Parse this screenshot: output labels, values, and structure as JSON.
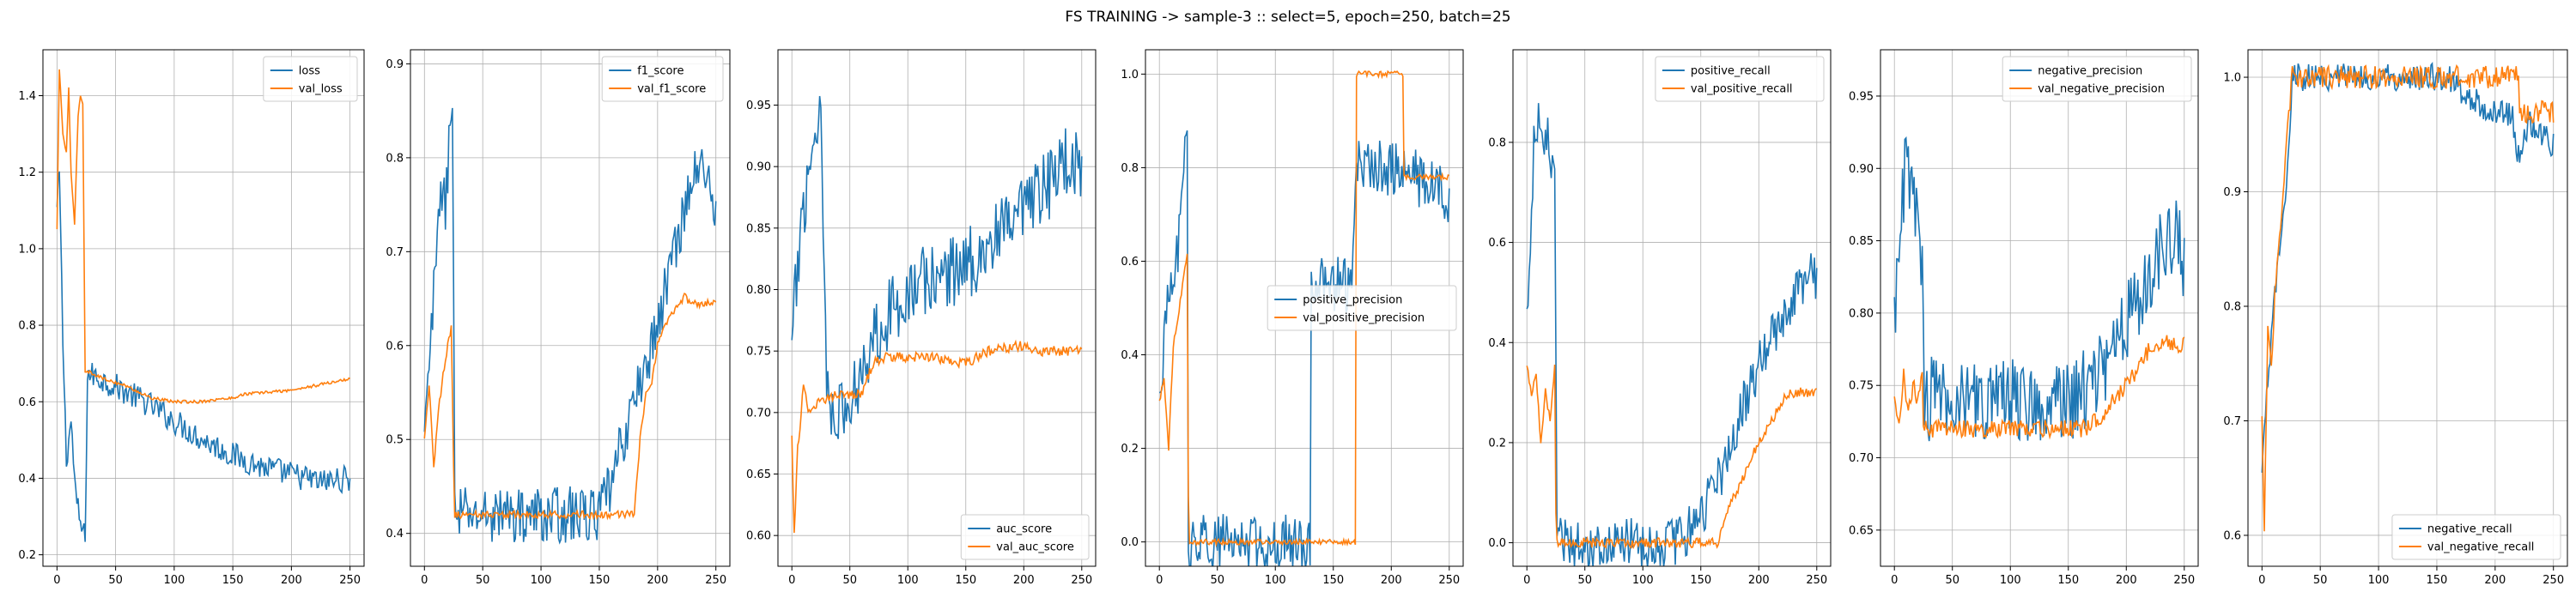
{
  "figure": {
    "suptitle": "FS TRAINING -> sample-3 :: select=5, epoch=250, batch=25"
  },
  "colors": {
    "series_blue": "#1f77b4",
    "series_orange": "#ff7f0e",
    "grid": "#b0b0b0"
  },
  "chart_data": [
    {
      "type": "line",
      "x_range": [
        0,
        250
      ],
      "xlim": [
        -12,
        262
      ],
      "ylim": [
        0.17,
        1.52
      ],
      "x_ticks": [
        0,
        50,
        100,
        150,
        200,
        250
      ],
      "y_ticks": [
        0.2,
        0.4,
        0.6,
        0.8,
        1.0,
        1.2,
        1.4
      ],
      "y_tick_labels": [
        "0.2",
        "0.4",
        "0.6",
        "0.8",
        "1.0",
        "1.2",
        "1.4"
      ],
      "grid": true,
      "legend_position": "top-right",
      "series": [
        {
          "name": "loss",
          "color": "#1f77b4",
          "noise": 0.035,
          "control_x": [
            0,
            2,
            5,
            8,
            12,
            16,
            20,
            24,
            26,
            30,
            50,
            75,
            100,
            125,
            150,
            175,
            200,
            225,
            250
          ],
          "control_y": [
            1.1,
            1.2,
            0.76,
            0.45,
            0.55,
            0.35,
            0.28,
            0.24,
            0.67,
            0.67,
            0.64,
            0.6,
            0.55,
            0.5,
            0.46,
            0.43,
            0.41,
            0.39,
            0.4
          ]
        },
        {
          "name": "val_loss",
          "color": "#ff7f0e",
          "noise": 0.004,
          "control_x": [
            0,
            2,
            5,
            8,
            10,
            12,
            15,
            18,
            20,
            22,
            24,
            26,
            40,
            60,
            80,
            100,
            120,
            150,
            160,
            200,
            250
          ],
          "control_y": [
            1.05,
            1.47,
            1.3,
            1.25,
            1.42,
            1.2,
            1.06,
            1.35,
            1.4,
            1.38,
            0.68,
            0.68,
            0.66,
            0.64,
            0.61,
            0.6,
            0.6,
            0.61,
            0.62,
            0.63,
            0.66
          ]
        }
      ]
    },
    {
      "type": "line",
      "x_range": [
        0,
        250
      ],
      "xlim": [
        -12,
        262
      ],
      "ylim": [
        0.365,
        0.915
      ],
      "x_ticks": [
        0,
        50,
        100,
        150,
        200,
        250
      ],
      "y_ticks": [
        0.4,
        0.5,
        0.6,
        0.7,
        0.8,
        0.9
      ],
      "y_tick_labels": [
        "0.4",
        "0.5",
        "0.6",
        "0.7",
        "0.8",
        "0.9"
      ],
      "grid": true,
      "legend_position": "top-right",
      "series": [
        {
          "name": "f1_score",
          "color": "#1f77b4",
          "noise": 0.03,
          "control_x": [
            0,
            3,
            6,
            10,
            14,
            18,
            22,
            24,
            26,
            30,
            60,
            100,
            150,
            160,
            175,
            190,
            200,
            210,
            220,
            230,
            240,
            250
          ],
          "control_y": [
            0.5,
            0.55,
            0.62,
            0.68,
            0.78,
            0.74,
            0.84,
            0.88,
            0.42,
            0.42,
            0.42,
            0.42,
            0.42,
            0.45,
            0.52,
            0.58,
            0.62,
            0.68,
            0.73,
            0.78,
            0.79,
            0.75
          ]
        },
        {
          "name": "val_f1_score",
          "color": "#ff7f0e",
          "noise": 0.004,
          "control_x": [
            0,
            4,
            8,
            12,
            16,
            20,
            23,
            25,
            26,
            40,
            100,
            160,
            170,
            180,
            185,
            190,
            195,
            200,
            210,
            225,
            226,
            250
          ],
          "control_y": [
            0.5,
            0.56,
            0.47,
            0.53,
            0.57,
            0.6,
            0.62,
            0.47,
            0.42,
            0.42,
            0.42,
            0.42,
            0.42,
            0.42,
            0.5,
            0.55,
            0.56,
            0.6,
            0.63,
            0.655,
            0.645,
            0.645
          ]
        }
      ]
    },
    {
      "type": "line",
      "x_range": [
        0,
        250
      ],
      "xlim": [
        -12,
        262
      ],
      "ylim": [
        0.575,
        0.995
      ],
      "x_ticks": [
        0,
        50,
        100,
        150,
        200,
        250
      ],
      "y_ticks": [
        0.6,
        0.65,
        0.7,
        0.75,
        0.8,
        0.85,
        0.9,
        0.95
      ],
      "y_tick_labels": [
        "0.60",
        "0.65",
        "0.70",
        "0.75",
        "0.80",
        "0.85",
        "0.90",
        "0.95"
      ],
      "grid": true,
      "legend_position": "bottom-right",
      "series": [
        {
          "name": "auc_score",
          "color": "#1f77b4",
          "noise": 0.03,
          "control_x": [
            0,
            5,
            10,
            15,
            20,
            25,
            30,
            40,
            50,
            60,
            75,
            100,
            125,
            150,
            175,
            200,
            225,
            240,
            250
          ],
          "control_y": [
            0.75,
            0.82,
            0.87,
            0.9,
            0.93,
            0.95,
            0.72,
            0.7,
            0.7,
            0.74,
            0.77,
            0.8,
            0.81,
            0.82,
            0.84,
            0.86,
            0.89,
            0.91,
            0.9
          ]
        },
        {
          "name": "val_auc_score",
          "color": "#ff7f0e",
          "noise": 0.004,
          "control_x": [
            0,
            2,
            5,
            10,
            15,
            25,
            40,
            60,
            70,
            80,
            100,
            120,
            150,
            160,
            170,
            200,
            210,
            250
          ],
          "control_y": [
            0.68,
            0.6,
            0.67,
            0.72,
            0.7,
            0.71,
            0.715,
            0.715,
            0.74,
            0.745,
            0.745,
            0.745,
            0.74,
            0.745,
            0.75,
            0.755,
            0.75,
            0.75
          ]
        }
      ]
    },
    {
      "type": "line",
      "x_range": [
        0,
        250
      ],
      "xlim": [
        -12,
        262
      ],
      "ylim": [
        -0.052,
        1.052
      ],
      "x_ticks": [
        0,
        50,
        100,
        150,
        200,
        250
      ],
      "y_ticks": [
        0.0,
        0.2,
        0.4,
        0.6,
        0.8,
        1.0
      ],
      "y_tick_labels": [
        "0.0",
        "0.2",
        "0.4",
        "0.6",
        "0.8",
        "1.0"
      ],
      "grid": true,
      "legend_position": "center-right",
      "series": [
        {
          "name": "positive_precision",
          "color": "#1f77b4",
          "noise": 0.06,
          "control_x": [
            0,
            5,
            10,
            15,
            20,
            24,
            25,
            26,
            130,
            131,
            165,
            170,
            180,
            200,
            220,
            240,
            250
          ],
          "control_y": [
            0.3,
            0.45,
            0.55,
            0.6,
            0.72,
            0.9,
            0.02,
            0.0,
            0.0,
            0.55,
            0.55,
            0.8,
            0.8,
            0.8,
            0.78,
            0.75,
            0.73
          ]
        },
        {
          "name": "val_positive_precision",
          "color": "#ff7f0e",
          "noise": 0.006,
          "control_x": [
            0,
            4,
            8,
            12,
            16,
            20,
            24,
            25,
            26,
            169,
            170,
            210,
            211,
            250
          ],
          "control_y": [
            0.3,
            0.35,
            0.2,
            0.42,
            0.48,
            0.55,
            0.62,
            0.1,
            0.0,
            0.0,
            1.0,
            1.0,
            0.78,
            0.78
          ]
        }
      ]
    },
    {
      "type": "line",
      "x_range": [
        0,
        250
      ],
      "xlim": [
        -12,
        262
      ],
      "ylim": [
        -0.047,
        0.985
      ],
      "x_ticks": [
        0,
        50,
        100,
        150,
        200,
        250
      ],
      "y_ticks": [
        0.0,
        0.2,
        0.4,
        0.6,
        0.8
      ],
      "y_tick_labels": [
        "0.0",
        "0.2",
        "0.4",
        "0.6",
        "0.8"
      ],
      "grid": true,
      "legend_position": "top-right",
      "series": [
        {
          "name": "positive_recall",
          "color": "#1f77b4",
          "noise": 0.05,
          "control_x": [
            0,
            3,
            6,
            10,
            14,
            18,
            22,
            24,
            26,
            130,
            150,
            170,
            190,
            210,
            230,
            245,
            250
          ],
          "control_y": [
            0.45,
            0.6,
            0.8,
            0.85,
            0.78,
            0.8,
            0.75,
            0.7,
            0.0,
            0.0,
            0.06,
            0.15,
            0.3,
            0.4,
            0.5,
            0.55,
            0.52
          ]
        },
        {
          "name": "val_positive_recall",
          "color": "#ff7f0e",
          "noise": 0.01,
          "control_x": [
            0,
            4,
            8,
            12,
            16,
            20,
            24,
            25,
            26,
            165,
            170,
            185,
            195,
            205,
            215,
            225,
            250
          ],
          "control_y": [
            0.35,
            0.3,
            0.33,
            0.2,
            0.3,
            0.25,
            0.35,
            0.05,
            0.0,
            0.0,
            0.05,
            0.12,
            0.18,
            0.22,
            0.26,
            0.3,
            0.3
          ]
        }
      ]
    },
    {
      "type": "line",
      "x_range": [
        0,
        250
      ],
      "xlim": [
        -12,
        262
      ],
      "ylim": [
        0.625,
        0.982
      ],
      "x_ticks": [
        0,
        50,
        100,
        150,
        200,
        250
      ],
      "y_ticks": [
        0.65,
        0.7,
        0.75,
        0.8,
        0.85,
        0.9,
        0.95
      ],
      "y_tick_labels": [
        "0.65",
        "0.70",
        "0.75",
        "0.80",
        "0.85",
        "0.90",
        "0.95"
      ],
      "grid": true,
      "legend_position": "top-right",
      "series": [
        {
          "name": "negative_precision",
          "color": "#1f77b4",
          "noise": 0.03,
          "control_x": [
            0,
            5,
            10,
            15,
            20,
            24,
            26,
            50,
            100,
            150,
            170,
            190,
            210,
            230,
            245,
            250
          ],
          "control_y": [
            0.8,
            0.87,
            0.9,
            0.88,
            0.86,
            0.84,
            0.74,
            0.74,
            0.74,
            0.74,
            0.75,
            0.78,
            0.81,
            0.84,
            0.85,
            0.83
          ]
        },
        {
          "name": "val_negative_precision",
          "color": "#ff7f0e",
          "noise": 0.006,
          "control_x": [
            0,
            4,
            8,
            12,
            16,
            20,
            24,
            25,
            26,
            165,
            170,
            180,
            190,
            200,
            210,
            220,
            230,
            240,
            250
          ],
          "control_y": [
            0.74,
            0.72,
            0.76,
            0.73,
            0.75,
            0.74,
            0.76,
            0.72,
            0.72,
            0.72,
            0.725,
            0.73,
            0.74,
            0.75,
            0.76,
            0.775,
            0.78,
            0.778,
            0.778
          ]
        }
      ]
    },
    {
      "type": "line",
      "x_range": [
        0,
        250
      ],
      "xlim": [
        -12,
        262
      ],
      "ylim": [
        0.573,
        1.024
      ],
      "x_ticks": [
        0,
        50,
        100,
        150,
        200,
        250
      ],
      "y_ticks": [
        0.6,
        0.7,
        0.8,
        0.9,
        1.0
      ],
      "y_tick_labels": [
        "0.6",
        "0.7",
        "0.8",
        "0.9",
        "1.0"
      ],
      "grid": true,
      "legend_position": "bottom-right",
      "series": [
        {
          "name": "negative_recall",
          "color": "#1f77b4",
          "noise": 0.012,
          "control_x": [
            0,
            4,
            8,
            12,
            16,
            20,
            24,
            26,
            160,
            170,
            180,
            200,
            215,
            220,
            230,
            240,
            250
          ],
          "control_y": [
            0.65,
            0.72,
            0.77,
            0.82,
            0.86,
            0.9,
            0.96,
            1.0,
            1.0,
            0.99,
            0.98,
            0.97,
            0.965,
            0.93,
            0.96,
            0.95,
            0.94
          ]
        },
        {
          "name": "val_negative_recall",
          "color": "#ff7f0e",
          "noise": 0.01,
          "control_x": [
            0,
            2,
            5,
            8,
            12,
            16,
            20,
            24,
            25,
            220,
            221,
            250
          ],
          "control_y": [
            0.7,
            0.6,
            0.78,
            0.75,
            0.83,
            0.87,
            0.92,
            0.98,
            1.0,
            1.0,
            0.97,
            0.97
          ]
        }
      ]
    }
  ]
}
